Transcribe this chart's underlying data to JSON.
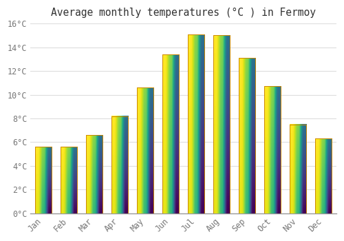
{
  "title": "Average monthly temperatures (°C ) in Fermoy",
  "months": [
    "Jan",
    "Feb",
    "Mar",
    "Apr",
    "May",
    "Jun",
    "Jul",
    "Aug",
    "Sep",
    "Oct",
    "Nov",
    "Dec"
  ],
  "values": [
    5.6,
    5.6,
    6.6,
    8.2,
    10.6,
    13.4,
    15.1,
    15.0,
    13.1,
    10.7,
    7.5,
    6.3
  ],
  "bar_color_bottom": "#F5A800",
  "bar_color_top": "#FFD060",
  "ylim": [
    0,
    16
  ],
  "yticks": [
    0,
    2,
    4,
    6,
    8,
    10,
    12,
    14,
    16
  ],
  "ytick_labels": [
    "0°C",
    "2°C",
    "4°C",
    "6°C",
    "8°C",
    "10°C",
    "12°C",
    "14°C",
    "16°C"
  ],
  "background_color": "#FFFFFF",
  "grid_color": "#DDDDDD",
  "title_fontsize": 10.5,
  "tick_fontsize": 8.5,
  "bar_edge_color": "#CC8800",
  "bar_width": 0.65,
  "spine_color": "#999999",
  "tick_color": "#777777"
}
